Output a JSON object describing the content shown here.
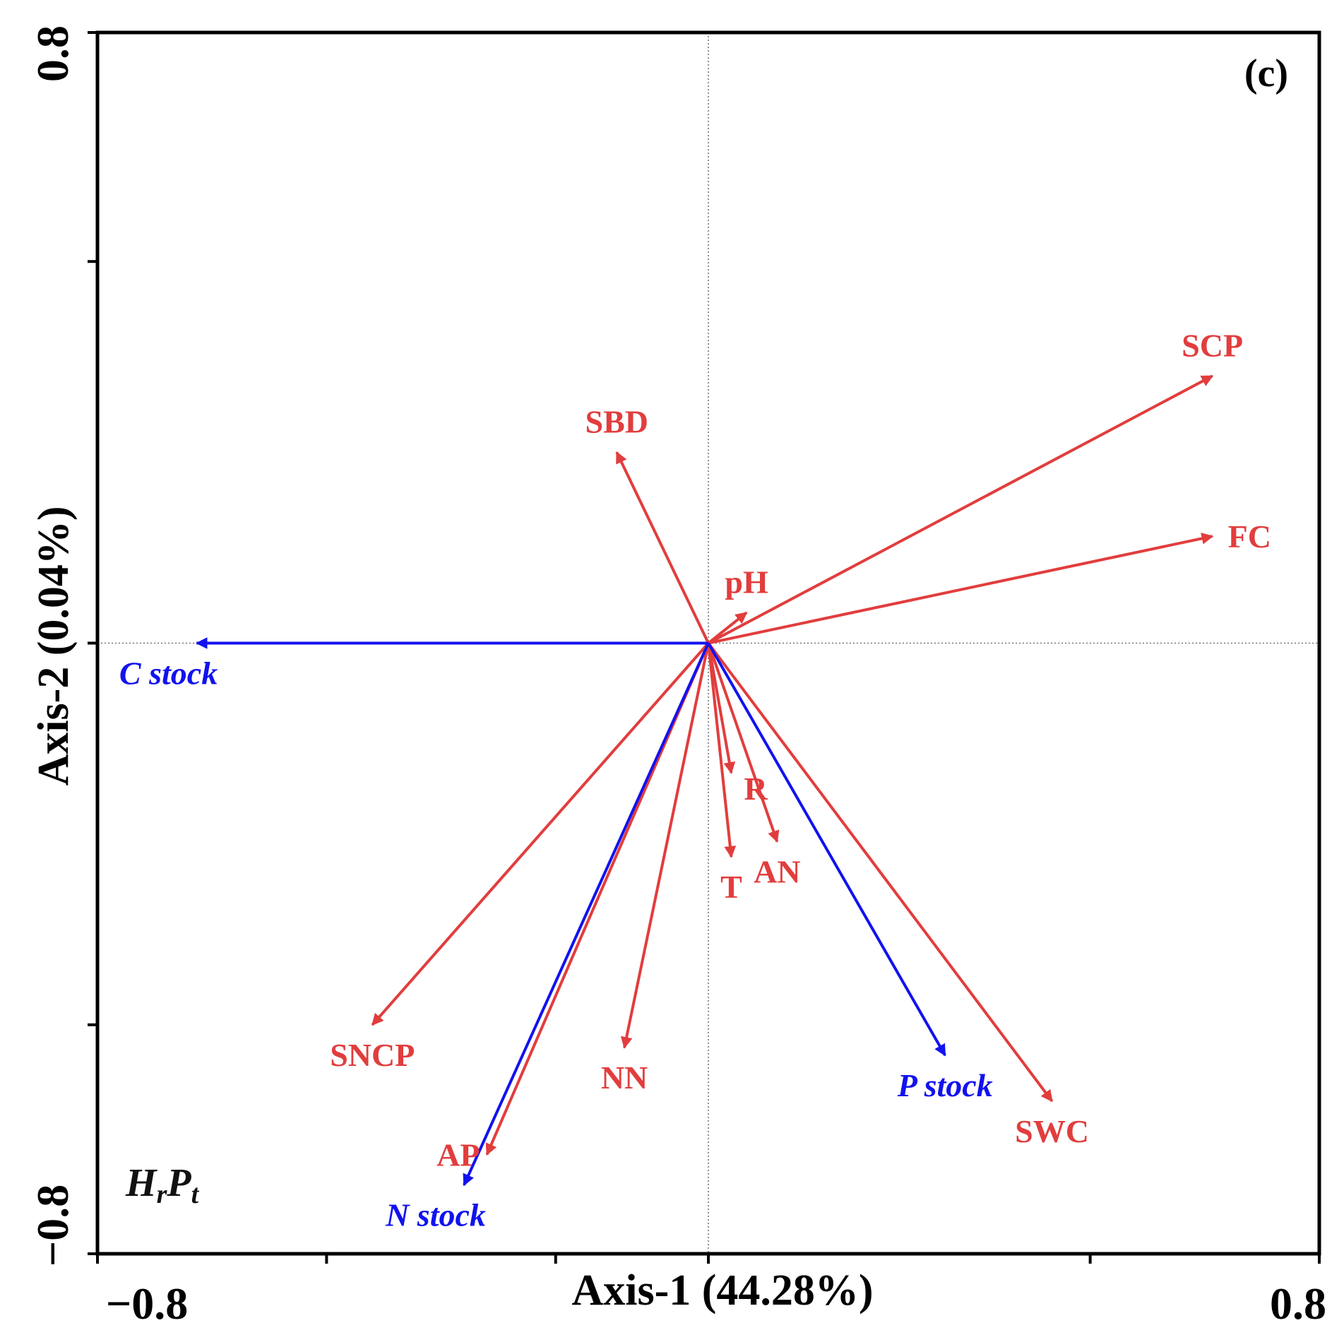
{
  "chart_data": {
    "type": "biplot",
    "panel_label": "(c)",
    "group_label": {
      "main1": "H",
      "sub1": "r",
      "main2": "P",
      "sub2": "t"
    },
    "xlabel": "Axis-1 (44.28%)",
    "ylabel": "Axis-2 (0.04%)",
    "xlim": [
      -0.8,
      0.8
    ],
    "ylim": [
      -0.8,
      0.8
    ],
    "x_tick_labels": [
      {
        "value": -0.8,
        "label": "−0.8"
      },
      {
        "value": 0.8,
        "label": "0.8"
      }
    ],
    "y_tick_labels": [
      {
        "value": 0.8,
        "label": "0.8"
      },
      {
        "value": -0.8,
        "label": "−0.8"
      }
    ],
    "x_ticks": [
      -0.8,
      -0.5,
      -0.2,
      0.0,
      0.5,
      0.8
    ],
    "y_ticks": [
      0.8,
      0.5,
      0.0,
      -0.5,
      -0.8
    ],
    "reference_lines": {
      "x": 0.0,
      "y": 0.0
    },
    "colors": {
      "explanatory": "#e23d3d",
      "response": "#1212ee",
      "axis": "#000000",
      "reference": "#777777"
    },
    "vectors": [
      {
        "name": "SCP",
        "x": 0.66,
        "y": 0.35,
        "group": "explanatory",
        "label_pos": "above"
      },
      {
        "name": "FC",
        "x": 0.66,
        "y": 0.14,
        "group": "explanatory",
        "label_pos": "right"
      },
      {
        "name": "SBD",
        "x": -0.12,
        "y": 0.25,
        "group": "explanatory",
        "label_pos": "above"
      },
      {
        "name": "pH",
        "x": 0.05,
        "y": 0.04,
        "group": "explanatory",
        "label_pos": "above"
      },
      {
        "name": "R",
        "x": 0.03,
        "y": -0.17,
        "group": "explanatory",
        "label_pos": "below-right"
      },
      {
        "name": "T",
        "x": 0.03,
        "y": -0.28,
        "group": "explanatory",
        "label_pos": "below"
      },
      {
        "name": "AN",
        "x": 0.09,
        "y": -0.26,
        "group": "explanatory",
        "label_pos": "below"
      },
      {
        "name": "SNCP",
        "x": -0.44,
        "y": -0.5,
        "group": "explanatory",
        "label_pos": "below"
      },
      {
        "name": "NN",
        "x": -0.11,
        "y": -0.53,
        "group": "explanatory",
        "label_pos": "below"
      },
      {
        "name": "AP",
        "x": -0.29,
        "y": -0.67,
        "group": "explanatory",
        "label_pos": "left"
      },
      {
        "name": "SWC",
        "x": 0.45,
        "y": -0.6,
        "group": "explanatory",
        "label_pos": "below"
      },
      {
        "name": "C stock",
        "x": -0.67,
        "y": 0.0,
        "group": "response",
        "label_pos": "below-left"
      },
      {
        "name": "P stock",
        "x": 0.31,
        "y": -0.54,
        "group": "response",
        "label_pos": "below"
      },
      {
        "name": "N stock",
        "x": -0.32,
        "y": -0.71,
        "group": "response",
        "label_pos": "below-left"
      }
    ]
  }
}
